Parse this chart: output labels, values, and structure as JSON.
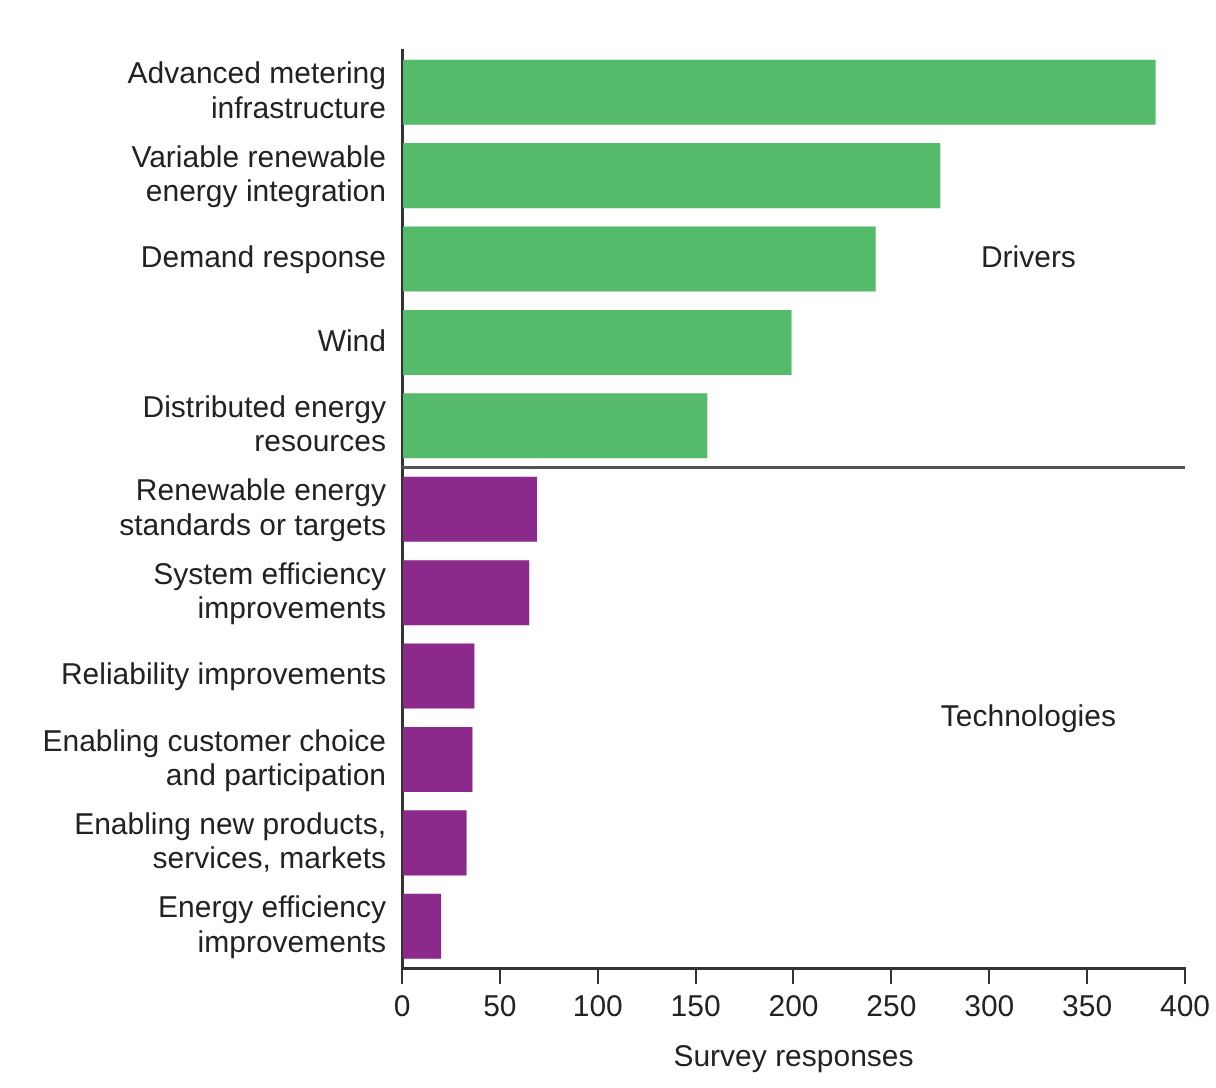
{
  "chart_data": {
    "type": "bar",
    "orientation": "horizontal",
    "xlabel": "Survey responses",
    "categories": [
      "Advanced metering infrastructure",
      "Variable renewable energy integration",
      "Demand response",
      "Wind",
      "Distributed energy resources",
      "Renewable energy standards or targets",
      "System efficiency improvements",
      "Reliability improvements",
      "Enabling customer choice and participation",
      "Enabling new products, services, markets",
      "Energy efficiency improvements"
    ],
    "series": [
      {
        "name": "Drivers",
        "color": "#55bb6a",
        "values": [
          385,
          275,
          242,
          199,
          156,
          null,
          null,
          null,
          null,
          null,
          null
        ]
      },
      {
        "name": "Technologies",
        "color": "#8b2a8a",
        "values": [
          null,
          null,
          null,
          null,
          null,
          69,
          65,
          37,
          36,
          33,
          20
        ]
      }
    ],
    "xlim": [
      0,
      400
    ],
    "xticks": [
      0,
      50,
      100,
      150,
      200,
      250,
      300,
      350,
      400
    ],
    "grid": false,
    "legend": false
  }
}
